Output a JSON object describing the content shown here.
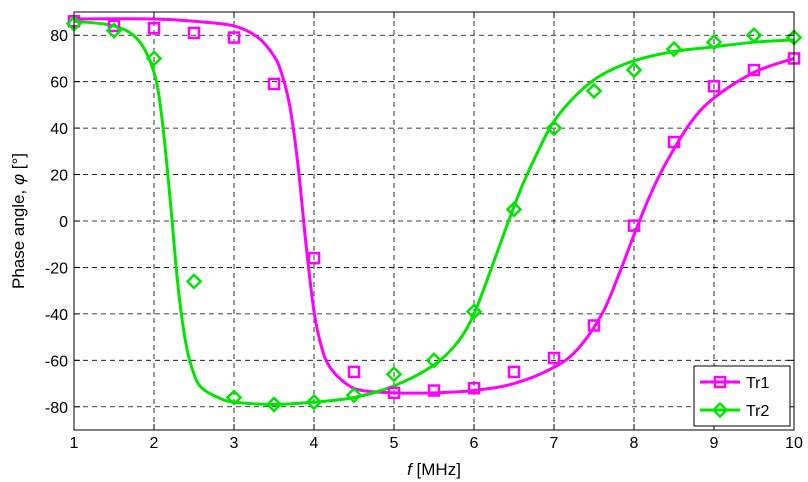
{
  "chart_data": {
    "type": "line",
    "xlabel_symbol": "f",
    "xlabel_unit": " [MHz]",
    "ylabel_text": "Phase angle, ",
    "ylabel_symbol": "φ",
    "ylabel_unit": " [°]",
    "xlim": [
      1,
      10
    ],
    "ylim": [
      -90,
      90
    ],
    "xticks": [
      1,
      2,
      3,
      4,
      5,
      6,
      7,
      8,
      9,
      10
    ],
    "yticks": [
      -80,
      -60,
      -40,
      -20,
      0,
      20,
      40,
      60,
      80
    ],
    "grid": true,
    "legend_position": "bottom-right",
    "series": [
      {
        "name": "Tr1",
        "color": "#ff00ff",
        "marker": "square",
        "measured": {
          "x": [
            1,
            1.5,
            2,
            2.5,
            3,
            3.5,
            4,
            4.5,
            5,
            5.5,
            6,
            6.5,
            7,
            7.5,
            8,
            8.5,
            9,
            9.5,
            10
          ],
          "y": [
            86,
            84,
            83,
            81,
            79,
            59,
            -16,
            -65,
            -74,
            -73,
            -72,
            -65,
            -59,
            -45,
            -2,
            34,
            58,
            65,
            70
          ]
        },
        "fit": {
          "x": [
            1,
            2,
            2.5,
            3,
            3.3,
            3.5,
            3.6,
            3.7,
            3.8,
            3.9,
            4.0,
            4.1,
            4.2,
            4.4,
            4.6,
            5,
            5.5,
            6,
            6.5,
            7,
            7.3,
            7.6,
            7.8,
            8.0,
            8.2,
            8.4,
            8.7,
            9,
            9.5,
            10
          ],
          "y": [
            87,
            87,
            86,
            84,
            79,
            71,
            63,
            49,
            24,
            -10,
            -39,
            -55,
            -63,
            -70,
            -73,
            -74,
            -74,
            -73,
            -70,
            -63,
            -55,
            -40,
            -24,
            -6,
            11,
            25,
            42,
            53,
            64,
            70
          ]
        }
      },
      {
        "name": "Tr2",
        "color": "#00e600",
        "marker": "diamond",
        "measured": {
          "x": [
            1,
            1.5,
            2,
            2.5,
            3,
            3.5,
            4,
            4.5,
            5,
            5.5,
            6,
            6.5,
            7,
            7.5,
            8,
            8.5,
            9,
            9.5,
            10
          ],
          "y": [
            85,
            82,
            70,
            -26,
            -76,
            -79,
            -78,
            -75,
            -66,
            -60,
            -39,
            5,
            40,
            56,
            65,
            74,
            77,
            80,
            79
          ]
        },
        "fit": {
          "x": [
            1,
            1.5,
            1.8,
            2.0,
            2.1,
            2.2,
            2.3,
            2.4,
            2.5,
            2.6,
            2.8,
            3,
            3.5,
            4,
            4.5,
            5,
            5.5,
            5.8,
            6.0,
            6.2,
            6.4,
            6.6,
            6.8,
            7.0,
            7.3,
            7.6,
            8,
            8.5,
            9,
            9.5,
            10
          ],
          "y": [
            86,
            84,
            78,
            64,
            44,
            10,
            -28,
            -53,
            -66,
            -72,
            -76,
            -78,
            -79,
            -78,
            -76,
            -71,
            -62,
            -52,
            -40,
            -22,
            -3,
            15,
            30,
            43,
            55,
            63,
            69,
            73,
            75,
            77,
            78
          ]
        }
      }
    ]
  }
}
